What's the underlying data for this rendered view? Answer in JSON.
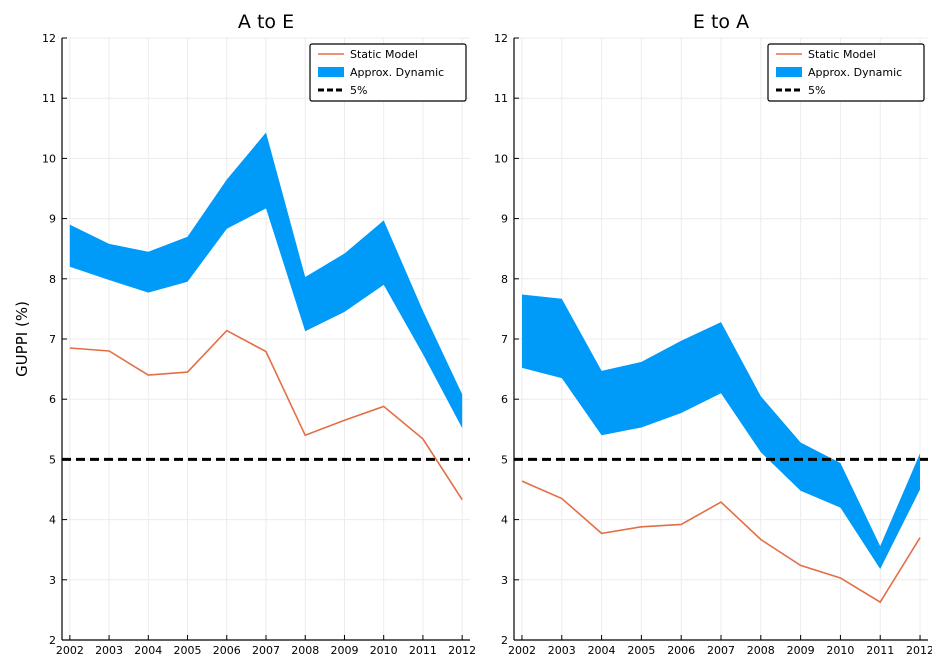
{
  "colors": {
    "static": "#e26f46",
    "dynamic": "#009af9",
    "threshold": "#000000",
    "grid": "#ececec"
  },
  "chart_data": [
    {
      "type": "line",
      "title": "A to E",
      "xlabel": "",
      "ylabel": "GUPPI (%)",
      "x": [
        2002,
        2003,
        2004,
        2005,
        2006,
        2007,
        2008,
        2009,
        2010,
        2011,
        2012
      ],
      "xlim": [
        2001.8,
        2012.2
      ],
      "ylim": [
        2,
        12
      ],
      "yticks": [
        2,
        3,
        4,
        5,
        6,
        7,
        8,
        9,
        10,
        11,
        12
      ],
      "grid": true,
      "legend": "top-right",
      "series": [
        {
          "name": "Static Model",
          "kind": "line",
          "values": [
            6.85,
            6.8,
            6.4,
            6.45,
            7.14,
            6.79,
            5.4,
            5.65,
            5.88,
            5.34,
            4.33
          ]
        },
        {
          "name": "Approx. Dynamic",
          "kind": "band",
          "lower": [
            8.2,
            7.98,
            7.77,
            7.95,
            8.83,
            9.17,
            7.13,
            7.45,
            7.9,
            6.75,
            5.52
          ],
          "upper": [
            8.9,
            8.58,
            8.45,
            8.7,
            9.65,
            10.43,
            8.03,
            8.42,
            8.97,
            7.47,
            6.08
          ]
        },
        {
          "name": "5%",
          "kind": "hline",
          "value": 5
        }
      ]
    },
    {
      "type": "line",
      "title": "E to A",
      "xlabel": "",
      "ylabel": "",
      "x": [
        2002,
        2003,
        2004,
        2005,
        2006,
        2007,
        2008,
        2009,
        2010,
        2011,
        2012
      ],
      "xlim": [
        2001.8,
        2012.2
      ],
      "ylim": [
        2,
        12
      ],
      "yticks": [
        2,
        3,
        4,
        5,
        6,
        7,
        8,
        9,
        10,
        11,
        12
      ],
      "grid": true,
      "legend": "top-right",
      "series": [
        {
          "name": "Static Model",
          "kind": "line",
          "values": [
            4.64,
            4.35,
            3.77,
            3.88,
            3.92,
            4.29,
            3.67,
            3.24,
            3.03,
            2.63,
            3.7
          ]
        },
        {
          "name": "Approx. Dynamic",
          "kind": "band",
          "lower": [
            6.52,
            6.35,
            5.4,
            5.53,
            5.77,
            6.1,
            5.12,
            4.48,
            4.2,
            3.18,
            4.5
          ],
          "upper": [
            7.74,
            7.67,
            6.47,
            6.62,
            6.97,
            7.28,
            6.05,
            5.28,
            4.94,
            3.56,
            5.1
          ]
        },
        {
          "name": "5%",
          "kind": "hline",
          "value": 5
        }
      ]
    }
  ]
}
